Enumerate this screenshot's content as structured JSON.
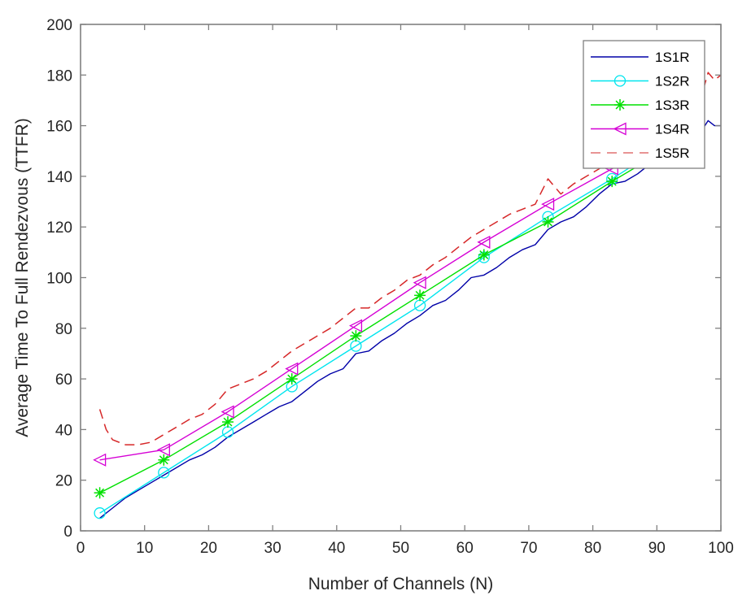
{
  "chart_data": {
    "type": "line",
    "title": "",
    "xlabel": "Number of Channels (N)",
    "ylabel": "Average Time To Full Rendezvous (TTFR)",
    "xlim": [
      0,
      100
    ],
    "ylim": [
      0,
      200
    ],
    "xticks": [
      0,
      10,
      20,
      30,
      40,
      50,
      60,
      70,
      80,
      90,
      100
    ],
    "yticks": [
      0,
      20,
      40,
      60,
      80,
      100,
      120,
      140,
      160,
      180,
      200
    ],
    "grid": false,
    "legend_position": "northeast",
    "series": [
      {
        "name": "1S1R",
        "color": "#0000a8",
        "line_style": "solid",
        "marker": "none",
        "x": [
          3,
          5,
          7,
          9,
          11,
          13,
          15,
          17,
          19,
          21,
          23,
          25,
          27,
          29,
          31,
          33,
          35,
          37,
          39,
          41,
          43,
          45,
          47,
          49,
          51,
          53,
          55,
          57,
          59,
          61,
          63,
          65,
          67,
          69,
          71,
          73,
          75,
          77,
          79,
          81,
          83,
          85,
          87,
          89,
          91,
          93,
          95,
          97,
          98,
          99,
          100
        ],
        "values": [
          5,
          9,
          13,
          16,
          19,
          22,
          25,
          28,
          30,
          33,
          37,
          40,
          43,
          46,
          49,
          51,
          55,
          59,
          62,
          64,
          70,
          71,
          75,
          78,
          82,
          85,
          89,
          91,
          95,
          100,
          101,
          104,
          108,
          111,
          113,
          119,
          122,
          124,
          128,
          133,
          137,
          138,
          141,
          145,
          148,
          152,
          156,
          158,
          162,
          160,
          160
        ]
      },
      {
        "name": "1S2R",
        "color": "#00e5ee",
        "line_style": "solid",
        "marker": "circle",
        "x": [
          3,
          13,
          23,
          33,
          43,
          53,
          63,
          73,
          83,
          93
        ],
        "values": [
          7,
          23,
          39,
          57,
          73,
          89,
          108,
          124,
          139,
          155
        ]
      },
      {
        "name": "1S3R",
        "color": "#00e000",
        "line_style": "solid",
        "marker": "asterisk",
        "x": [
          3,
          13,
          23,
          33,
          43,
          53,
          63,
          73,
          83,
          93
        ],
        "values": [
          15,
          28,
          43,
          60,
          77,
          93,
          109,
          122,
          138,
          153
        ]
      },
      {
        "name": "1S4R",
        "color": "#d500d5",
        "line_style": "solid",
        "marker": "triangle-left",
        "x": [
          3,
          13,
          23,
          33,
          43,
          53,
          63,
          73,
          83,
          93
        ],
        "values": [
          28,
          32,
          47,
          64,
          81,
          98,
          114,
          129,
          143,
          158
        ]
      },
      {
        "name": "1S5R",
        "color": "#d62728",
        "line_style": "dashed",
        "marker": "none",
        "x": [
          3,
          4,
          5,
          7,
          9,
          11,
          13,
          15,
          17,
          19,
          21,
          23,
          25,
          27,
          29,
          31,
          33,
          35,
          37,
          39,
          41,
          43,
          45,
          47,
          49,
          51,
          53,
          55,
          57,
          59,
          61,
          63,
          65,
          67,
          69,
          71,
          73,
          75,
          77,
          79,
          81,
          83,
          85,
          87,
          89,
          91,
          93,
          95,
          97,
          98,
          99,
          100
        ],
        "values": [
          48,
          40,
          36,
          34,
          34,
          35,
          38,
          41,
          44,
          46,
          50,
          56,
          58,
          60,
          63,
          67,
          71,
          74,
          77,
          80,
          84,
          88,
          88,
          92,
          95,
          99,
          101,
          105,
          108,
          112,
          116,
          119,
          122,
          125,
          127,
          129,
          139,
          133,
          137,
          140,
          143,
          147,
          150,
          153,
          156,
          160,
          163,
          168,
          172,
          181,
          178,
          180
        ]
      }
    ]
  },
  "axes": {
    "xlabel": "Number of Channels (N)",
    "ylabel": "Average Time To Full Rendezvous (TTFR)"
  },
  "legend": {
    "items": [
      "1S1R",
      "1S2R",
      "1S3R",
      "1S4R",
      "1S5R"
    ]
  }
}
